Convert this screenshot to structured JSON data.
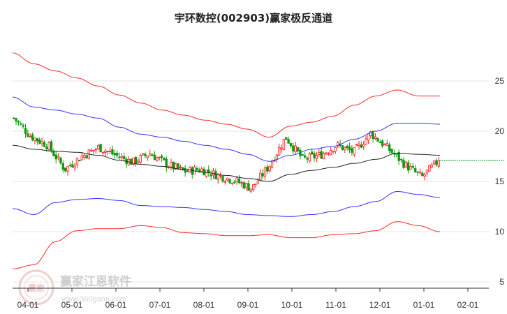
{
  "chart_data": {
    "type": "candlestick",
    "title": "宇环数控(002903)赢家极反通道",
    "y_ticks": [
      5,
      10,
      15,
      20,
      25
    ],
    "ylim": [
      4.5,
      29.5
    ],
    "x_ticks": [
      "04-01",
      "05-01",
      "06-01",
      "07-01",
      "08-01",
      "09-01",
      "10-01",
      "11-01",
      "12-01",
      "01-01",
      "02-01"
    ],
    "last_price": 17.1,
    "price_path": [
      {
        "month": "03-mid",
        "close": 21.3
      },
      {
        "month": "03-end",
        "close": 19.5
      },
      {
        "month": "04-01",
        "close": 18.6
      },
      {
        "month": "04-early",
        "close": 16.2
      },
      {
        "month": "04-end",
        "close": 17.5
      },
      {
        "month": "05-01",
        "close": 18.4
      },
      {
        "month": "05-mid",
        "close": 17.6
      },
      {
        "month": "06-01",
        "close": 16.9
      },
      {
        "month": "06-mid",
        "close": 17.8
      },
      {
        "month": "07-01",
        "close": 16.7
      },
      {
        "month": "07-mid",
        "close": 16.0
      },
      {
        "month": "08-01",
        "close": 16.2
      },
      {
        "month": "08-mid",
        "close": 15.6
      },
      {
        "month": "09-01",
        "close": 15.1
      },
      {
        "month": "09-mid",
        "close": 14.3
      },
      {
        "month": "10-01",
        "close": 16.5
      },
      {
        "month": "10-early",
        "close": 19.4
      },
      {
        "month": "10-mid",
        "close": 17.2
      },
      {
        "month": "11-01",
        "close": 17.6
      },
      {
        "month": "11-mid",
        "close": 18.6
      },
      {
        "month": "12-01",
        "close": 17.9
      },
      {
        "month": "12-mid",
        "close": 19.8
      },
      {
        "month": "12-end",
        "close": 18.3
      },
      {
        "month": "01-01",
        "close": 16.7
      },
      {
        "month": "01-mid",
        "close": 15.4
      },
      {
        "month": "01-late",
        "close": 17.1
      }
    ],
    "series": [
      {
        "values": [
          27.8,
          26.7,
          26.0,
          25.3,
          24.5,
          23.6,
          22.8,
          22.1,
          21.6,
          21.1,
          20.7,
          20.2,
          19.4,
          20.5,
          20.9,
          21.5,
          22.6,
          23.5,
          24.1,
          23.5,
          23.5
        ]
      },
      {
        "values": [
          23.4,
          22.4,
          22.1,
          21.7,
          21.3,
          20.4,
          19.7,
          19.4,
          19.0,
          18.6,
          18.2,
          17.7,
          17.0,
          17.6,
          18.2,
          18.5,
          19.2,
          20.0,
          20.8,
          20.8,
          20.7
        ]
      },
      {
        "values": [
          18.6,
          18.2,
          18.0,
          17.9,
          17.6,
          17.1,
          16.7,
          16.5,
          16.2,
          15.9,
          15.6,
          15.3,
          15.0,
          15.7,
          16.1,
          16.4,
          16.8,
          17.2,
          17.8,
          17.7,
          17.6
        ]
      },
      {
        "values": [
          12.3,
          11.7,
          12.9,
          13.2,
          13.3,
          13.1,
          12.6,
          12.5,
          12.4,
          12.2,
          12.0,
          11.7,
          11.6,
          11.5,
          11.7,
          12.0,
          12.5,
          13.0,
          14.0,
          13.7,
          13.4
        ]
      },
      {
        "values": [
          6.3,
          6.7,
          9.0,
          10.1,
          10.3,
          10.3,
          10.6,
          10.4,
          9.9,
          9.8,
          9.6,
          9.6,
          9.7,
          9.4,
          9.4,
          9.7,
          9.8,
          10.1,
          11.0,
          10.6,
          10.0
        ]
      }
    ],
    "colors": {
      "outer": "#ff2a2a",
      "inner": "#3333ff",
      "middle": "#222222",
      "up": "#ff1c1c",
      "down": "#119911",
      "grid": "#e6e6e6",
      "last_line": "#119911"
    }
  },
  "watermark": {
    "logo_text": "赢家",
    "text": "赢家江恩软件",
    "url": "www.360gann.com"
  }
}
